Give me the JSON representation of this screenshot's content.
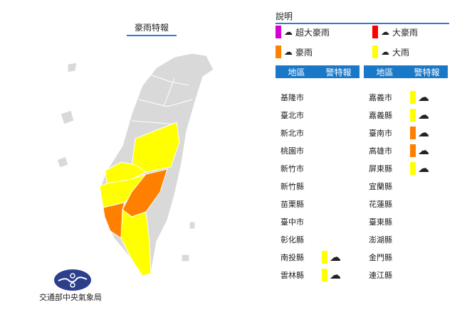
{
  "title": "豪雨特報",
  "legend": {
    "heading": "說明",
    "items": [
      {
        "label": "超大豪雨",
        "color": "#d400d4",
        "icon": "extreme-torrential-rain-icon"
      },
      {
        "label": "大豪雨",
        "color": "#ff0000",
        "icon": "torrential-rain-icon"
      },
      {
        "label": "豪雨",
        "color": "#ff8000",
        "icon": "extremely-heavy-rain-icon"
      },
      {
        "label": "大雨",
        "color": "#ffff00",
        "icon": "heavy-rain-icon"
      }
    ]
  },
  "table": {
    "col_region": "地區",
    "col_warning": "警特報",
    "left": [
      {
        "name": "基隆市"
      },
      {
        "name": "臺北市"
      },
      {
        "name": "新北市"
      },
      {
        "name": "桃園市"
      },
      {
        "name": "新竹市"
      },
      {
        "name": "新竹縣"
      },
      {
        "name": "苗栗縣"
      },
      {
        "name": "臺中市"
      },
      {
        "name": "彰化縣"
      },
      {
        "name": "南投縣",
        "level": "大雨"
      },
      {
        "name": "雲林縣",
        "level": "大雨"
      }
    ],
    "right": [
      {
        "name": "嘉義市",
        "level": "大雨"
      },
      {
        "name": "嘉義縣",
        "level": "大雨"
      },
      {
        "name": "臺南市",
        "level": "豪雨"
      },
      {
        "name": "高雄市",
        "level": "豪雨"
      },
      {
        "name": "屏東縣",
        "level": "大雨"
      },
      {
        "name": "宜蘭縣"
      },
      {
        "name": "花蓮縣"
      },
      {
        "name": "臺東縣"
      },
      {
        "name": "澎湖縣"
      },
      {
        "name": "金門縣"
      },
      {
        "name": "連江縣"
      }
    ]
  },
  "agency": "交通部中央氣象局"
}
